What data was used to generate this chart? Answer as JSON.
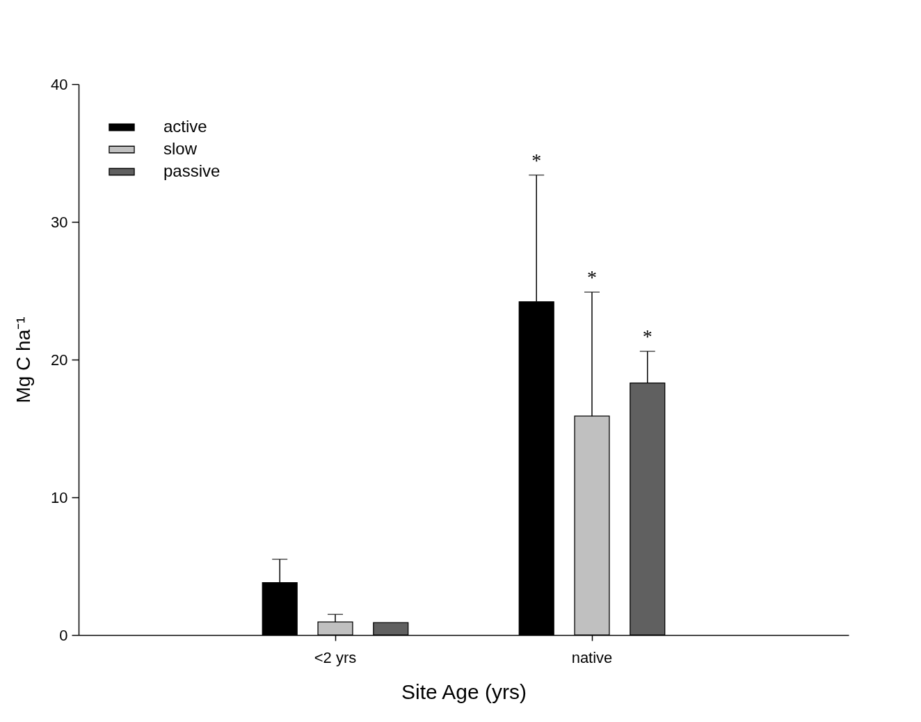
{
  "chart_data": {
    "type": "bar",
    "xlabel": "Site Age (yrs)",
    "ylabel": "Mg C ha⁻¹",
    "categories": [
      "<2 yrs",
      "native"
    ],
    "series": [
      {
        "name": "active",
        "color": "#000000",
        "values": [
          3.8,
          24.2
        ],
        "errors": [
          [
            3.8,
            5.5
          ],
          [
            24.2,
            33.4
          ]
        ]
      },
      {
        "name": "slow",
        "color": "#c0c0c0",
        "values": [
          0.95,
          15.9
        ],
        "errors": [
          [
            0.95,
            1.5
          ],
          [
            15.9,
            24.9
          ]
        ]
      },
      {
        "name": "passive",
        "color": "#606060",
        "values": [
          0.9,
          18.3
        ],
        "errors": [
          null,
          [
            18.3,
            20.6
          ]
        ]
      }
    ],
    "ylim": [
      0,
      40
    ],
    "yticks": [
      0,
      10,
      20,
      30,
      40
    ],
    "grid": false,
    "legend": "top left",
    "annotations": [
      "*",
      {
        "text": "*",
        "x": "native",
        "y": 24.9
      },
      {
        "text": "*",
        "x": "native",
        "y": 20.6
      }
    ]
  }
}
